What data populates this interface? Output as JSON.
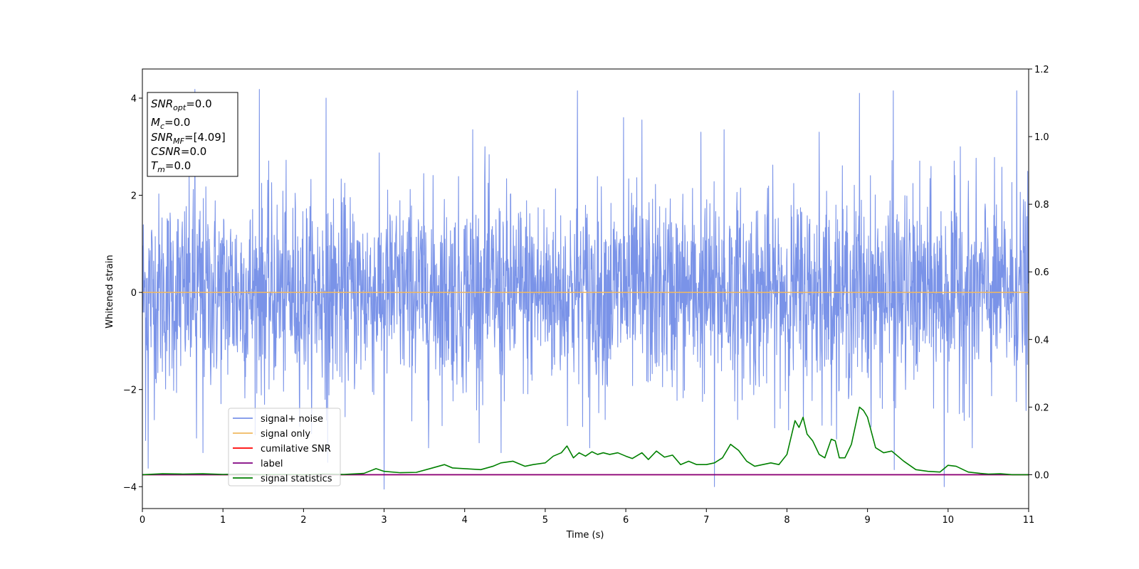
{
  "chart_data": {
    "type": "line",
    "xlabel": "Time (s)",
    "ylabel": "Whitened strain",
    "xlim": [
      0,
      11
    ],
    "ylim": [
      -4.45,
      4.6
    ],
    "y2lim": [
      -0.1,
      1.2
    ],
    "x_ticks": [
      0,
      1,
      2,
      3,
      4,
      5,
      6,
      7,
      8,
      9,
      10,
      11
    ],
    "y_ticks": [
      -4,
      -2,
      0,
      2,
      4
    ],
    "y2_ticks": [
      "0.0",
      "0.2",
      "0.4",
      "0.6",
      "0.8",
      "1.0",
      "1.2"
    ],
    "y2_tick_values": [
      0.0,
      0.2,
      0.4,
      0.6,
      0.8,
      1.0,
      1.2
    ],
    "grid": false,
    "legend_position": "lower-left",
    "info_box": {
      "lines": [
        {
          "name": "SNR",
          "sub": "opt",
          "value": "=0.0"
        },
        {
          "name": "M",
          "sub": "c",
          "value": "=0.0"
        },
        {
          "name": "SNR",
          "sub": "MF",
          "value": "=[4.09]"
        },
        {
          "name": "CSNR",
          "sub": "",
          "value": "=0.0"
        },
        {
          "name": "T",
          "sub": "m",
          "value": "=0.0"
        }
      ]
    },
    "series": [
      {
        "name": "signal+ noise",
        "axis": "left",
        "color": "#7a93e8",
        "kind": "noise",
        "sample_rate_hz": 250,
        "std": 1.0,
        "spikes": [
          {
            "t": 0.04,
            "v": -3.05
          },
          {
            "t": 0.07,
            "v": -3.62
          },
          {
            "t": 0.65,
            "v": 4.18
          },
          {
            "t": 0.67,
            "v": -3.0
          },
          {
            "t": 0.75,
            "v": -3.3
          },
          {
            "t": 1.45,
            "v": 4.18
          },
          {
            "t": 2.28,
            "v": 4.0
          },
          {
            "t": 2.3,
            "v": -3.5
          },
          {
            "t": 3.0,
            "v": -4.05
          },
          {
            "t": 3.55,
            "v": -3.2
          },
          {
            "t": 4.1,
            "v": 3.35
          },
          {
            "t": 4.25,
            "v": 3.0
          },
          {
            "t": 5.4,
            "v": 4.15
          },
          {
            "t": 5.97,
            "v": 3.6
          },
          {
            "t": 6.2,
            "v": 3.55
          },
          {
            "t": 6.93,
            "v": 3.3
          },
          {
            "t": 7.1,
            "v": -4.0
          },
          {
            "t": 7.22,
            "v": 3.35
          },
          {
            "t": 8.9,
            "v": 4.1
          },
          {
            "t": 9.32,
            "v": 4.15
          },
          {
            "t": 9.33,
            "v": -3.65
          },
          {
            "t": 9.95,
            "v": -4.0
          },
          {
            "t": 10.85,
            "v": 4.15
          },
          {
            "t": 10.15,
            "v": 3.0
          },
          {
            "t": 4.45,
            "v": -3.3
          },
          {
            "t": 5.55,
            "v": -3.2
          },
          {
            "t": 8.4,
            "v": 3.3
          },
          {
            "t": 10.3,
            "v": -3.2
          }
        ]
      },
      {
        "name": "signal only",
        "axis": "left",
        "color": "#f0b860",
        "x": [
          0,
          11
        ],
        "y": [
          0,
          0
        ]
      },
      {
        "name": "cumilative SNR",
        "axis": "right",
        "color": "#ff0000",
        "x": [
          0,
          11
        ],
        "y": [
          0,
          0
        ]
      },
      {
        "name": "label",
        "axis": "right",
        "color": "#800080",
        "x": [
          0,
          11
        ],
        "y": [
          0,
          0
        ]
      },
      {
        "name": "signal statistics",
        "axis": "right",
        "color": "#008000",
        "x": [
          0,
          0.25,
          0.5,
          0.75,
          1.0,
          1.25,
          1.5,
          1.75,
          2.0,
          2.25,
          2.5,
          2.75,
          2.9,
          3.0,
          3.2,
          3.4,
          3.6,
          3.75,
          3.85,
          4.0,
          4.2,
          4.35,
          4.45,
          4.6,
          4.75,
          4.85,
          5.0,
          5.1,
          5.2,
          5.27,
          5.35,
          5.42,
          5.5,
          5.58,
          5.65,
          5.72,
          5.8,
          5.9,
          6.0,
          6.08,
          6.2,
          6.28,
          6.38,
          6.48,
          6.58,
          6.68,
          6.78,
          6.88,
          7.0,
          7.1,
          7.2,
          7.3,
          7.4,
          7.5,
          7.6,
          7.7,
          7.8,
          7.9,
          8.0,
          8.1,
          8.15,
          8.2,
          8.25,
          8.32,
          8.4,
          8.47,
          8.55,
          8.6,
          8.65,
          8.72,
          8.8,
          8.9,
          8.95,
          9.0,
          9.1,
          9.2,
          9.3,
          9.45,
          9.6,
          9.75,
          9.9,
          10.0,
          10.1,
          10.25,
          10.4,
          10.5,
          10.65,
          10.8,
          11.0
        ],
        "y": [
          0.0,
          0.003,
          0.002,
          0.003,
          0.001,
          0.002,
          0.0,
          0.001,
          0.0,
          0.002,
          0.001,
          0.004,
          0.018,
          0.01,
          0.006,
          0.007,
          0.02,
          0.03,
          0.02,
          0.018,
          0.015,
          0.025,
          0.035,
          0.04,
          0.025,
          0.03,
          0.035,
          0.055,
          0.065,
          0.085,
          0.05,
          0.065,
          0.055,
          0.068,
          0.06,
          0.065,
          0.06,
          0.065,
          0.055,
          0.048,
          0.065,
          0.045,
          0.07,
          0.052,
          0.058,
          0.03,
          0.04,
          0.03,
          0.03,
          0.035,
          0.05,
          0.09,
          0.072,
          0.04,
          0.025,
          0.03,
          0.035,
          0.03,
          0.06,
          0.16,
          0.14,
          0.17,
          0.12,
          0.1,
          0.06,
          0.05,
          0.105,
          0.1,
          0.05,
          0.05,
          0.09,
          0.2,
          0.19,
          0.17,
          0.08,
          0.065,
          0.07,
          0.04,
          0.015,
          0.01,
          0.008,
          0.028,
          0.025,
          0.008,
          0.004,
          0.002,
          0.003,
          0.0,
          0.0
        ]
      }
    ]
  }
}
